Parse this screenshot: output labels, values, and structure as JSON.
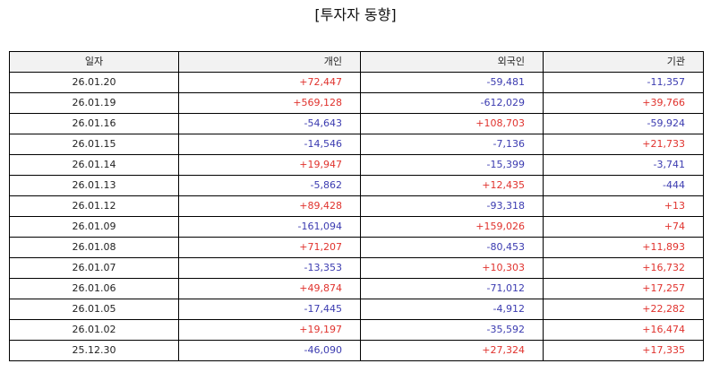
{
  "title": "[투자자 동향]",
  "colors": {
    "positive": "#e0322d",
    "negative": "#3b3bb0",
    "header_bg": "#f2f2f2"
  },
  "table": {
    "headers": [
      "일자",
      "개인",
      "외국인",
      "기관"
    ],
    "rows": [
      [
        "26.01.20",
        "+72,447",
        "-59,481",
        "-11,357"
      ],
      [
        "26.01.19",
        "+569,128",
        "-612,029",
        "+39,766"
      ],
      [
        "26.01.16",
        "-54,643",
        "+108,703",
        "-59,924"
      ],
      [
        "26.01.15",
        "-14,546",
        "-7,136",
        "+21,733"
      ],
      [
        "26.01.14",
        "+19,947",
        "-15,399",
        "-3,741"
      ],
      [
        "26.01.13",
        "-5,862",
        "+12,435",
        "-444"
      ],
      [
        "26.01.12",
        "+89,428",
        "-93,318",
        "+13"
      ],
      [
        "26.01.09",
        "-161,094",
        "+159,026",
        "+74"
      ],
      [
        "26.01.08",
        "+71,207",
        "-80,453",
        "+11,893"
      ],
      [
        "26.01.07",
        "-13,353",
        "+10,303",
        "+16,732"
      ],
      [
        "26.01.06",
        "+49,874",
        "-71,012",
        "+17,257"
      ],
      [
        "26.01.05",
        "-17,445",
        "-4,912",
        "+22,282"
      ],
      [
        "26.01.02",
        "+19,197",
        "-35,592",
        "+16,474"
      ],
      [
        "25.12.30",
        "-46,090",
        "+27,324",
        "+17,335"
      ]
    ]
  }
}
